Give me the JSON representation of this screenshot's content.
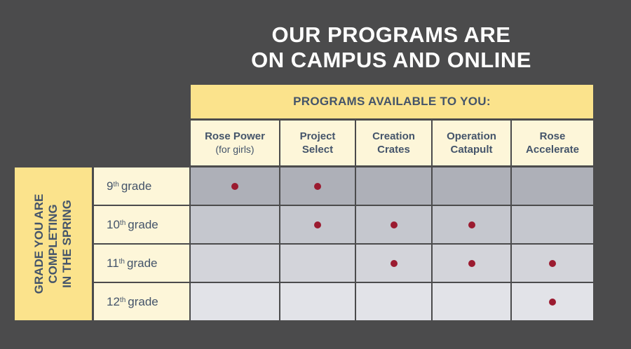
{
  "title": {
    "line1": "OUR PROGRAMS ARE",
    "line2": "ON CAMPUS AND ONLINE"
  },
  "table": {
    "column_header": "PROGRAMS AVAILABLE TO YOU:",
    "row_header_lines": [
      "GRADE YOU ARE",
      "COMPLETING",
      "IN THE SPRING"
    ],
    "programs": [
      {
        "line1": "Rose Power",
        "line2": "(for girls)"
      },
      {
        "line1": "Project",
        "line2": "Select"
      },
      {
        "line1": "Creation",
        "line2": "Crates"
      },
      {
        "line1": "Operation",
        "line2": "Catapult"
      },
      {
        "line1": "Rose",
        "line2": "Accelerate"
      }
    ],
    "grades": [
      {
        "num": "9",
        "sup": "th",
        "word": "grade"
      },
      {
        "num": "10",
        "sup": "th",
        "word": "grade"
      },
      {
        "num": "11",
        "sup": "th",
        "word": "grade"
      },
      {
        "num": "12",
        "sup": "th",
        "word": "grade"
      }
    ],
    "availability": [
      [
        true,
        true,
        false,
        false,
        false
      ],
      [
        false,
        true,
        true,
        true,
        false
      ],
      [
        false,
        false,
        true,
        true,
        true
      ],
      [
        false,
        false,
        false,
        false,
        true
      ]
    ]
  },
  "colors": {
    "background": "#4b4b4c",
    "header_yellow": "#fbe38c",
    "cream": "#fdf6d9",
    "text_slate": "#44546a",
    "dot_red": "#9b1b30",
    "row_grays": [
      "#aeb0b8",
      "#c5c7ce",
      "#d3d4da",
      "#e2e3e8"
    ]
  }
}
